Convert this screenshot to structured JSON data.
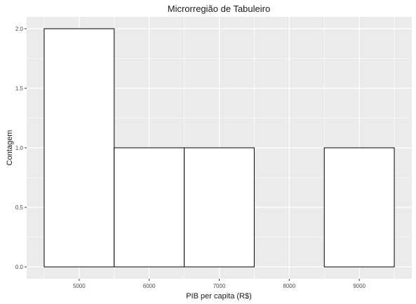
{
  "chart_data": {
    "type": "bar",
    "title": "Microrregião de  Tabuleiro",
    "xlabel": "PIB per capita (R$)",
    "ylabel": "Contagem",
    "bins": [
      {
        "start": 4500,
        "end": 5500,
        "count": 2
      },
      {
        "start": 5500,
        "end": 6500,
        "count": 1
      },
      {
        "start": 6500,
        "end": 7500,
        "count": 1
      },
      {
        "start": 7500,
        "end": 8500,
        "count": 0
      },
      {
        "start": 8500,
        "end": 9500,
        "count": 1
      }
    ],
    "x_ticks": [
      5000,
      6000,
      7000,
      8000,
      9000
    ],
    "x_tick_labels": [
      "5000",
      "6000",
      "7000",
      "8000",
      "9000"
    ],
    "y_ticks": [
      0,
      0.5,
      1,
      1.5,
      2
    ],
    "y_tick_labels": [
      "0.0",
      "0.5",
      "1.0",
      "1.5",
      "2.0"
    ],
    "xlim": [
      4250,
      9750
    ],
    "ylim": [
      -0.1,
      2.1
    ],
    "grid": true,
    "colors": {
      "panel_background": "#ebebeb",
      "grid": "#ffffff",
      "bar_fill": "#ffffff",
      "bar_outline": "#000000"
    }
  }
}
